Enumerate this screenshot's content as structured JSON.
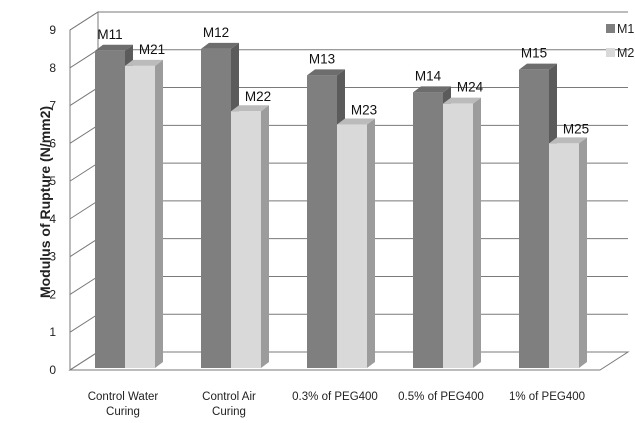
{
  "chart_data": {
    "type": "bar",
    "title": "",
    "xlabel": "",
    "ylabel": "Modulus of Rupture (N/mm2)",
    "ylim": [
      0,
      9
    ],
    "yticks": [
      0,
      1,
      2,
      3,
      4,
      5,
      6,
      7,
      8,
      9
    ],
    "grid": true,
    "three_d": true,
    "legend_position": "right",
    "categories": [
      [
        "Control Water",
        "Curing"
      ],
      [
        "Control Air",
        "Curing"
      ],
      [
        "0.3% of PEG400"
      ],
      [
        "0.5% of PEG400"
      ],
      [
        "1% of PEG400"
      ]
    ],
    "series": [
      {
        "name": "M1",
        "color": "#7f7f7f",
        "values": [
          8.45,
          8.5,
          7.8,
          7.35,
          7.95
        ],
        "labels": [
          "M11",
          "M12",
          "M13",
          "M14",
          "M15"
        ]
      },
      {
        "name": "M2",
        "color": "#d9d9d9",
        "values": [
          8.05,
          6.85,
          6.5,
          7.05,
          6.0
        ],
        "labels": [
          "M21",
          "M22",
          "M23",
          "M24",
          "M25"
        ]
      }
    ]
  }
}
